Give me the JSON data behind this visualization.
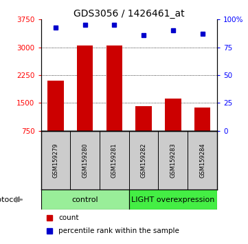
{
  "title": "GDS3056 / 1426461_at",
  "samples": [
    "GSM159279",
    "GSM159280",
    "GSM159281",
    "GSM159282",
    "GSM159283",
    "GSM159284"
  ],
  "counts": [
    2100,
    3050,
    3050,
    1420,
    1620,
    1380
  ],
  "percentiles": [
    93,
    95,
    95,
    86,
    90,
    87
  ],
  "ylim_left": [
    750,
    3750
  ],
  "yticks_left": [
    750,
    1500,
    2250,
    3000,
    3750
  ],
  "ylim_right": [
    0,
    100
  ],
  "yticks_right": [
    0,
    25,
    50,
    75,
    100
  ],
  "bar_color": "#cc0000",
  "marker_color": "#0000cc",
  "bar_width": 0.55,
  "protocol_labels": [
    "control",
    "LIGHT overexpression"
  ],
  "protocol_color_control": "#99ee99",
  "protocol_color_light": "#44ee44",
  "sample_box_color": "#cccccc",
  "legend_count_label": "count",
  "legend_pct_label": "percentile rank within the sample",
  "title_fontsize": 10,
  "tick_fontsize": 7.5,
  "sample_fontsize": 6,
  "legend_fontsize": 7.5
}
